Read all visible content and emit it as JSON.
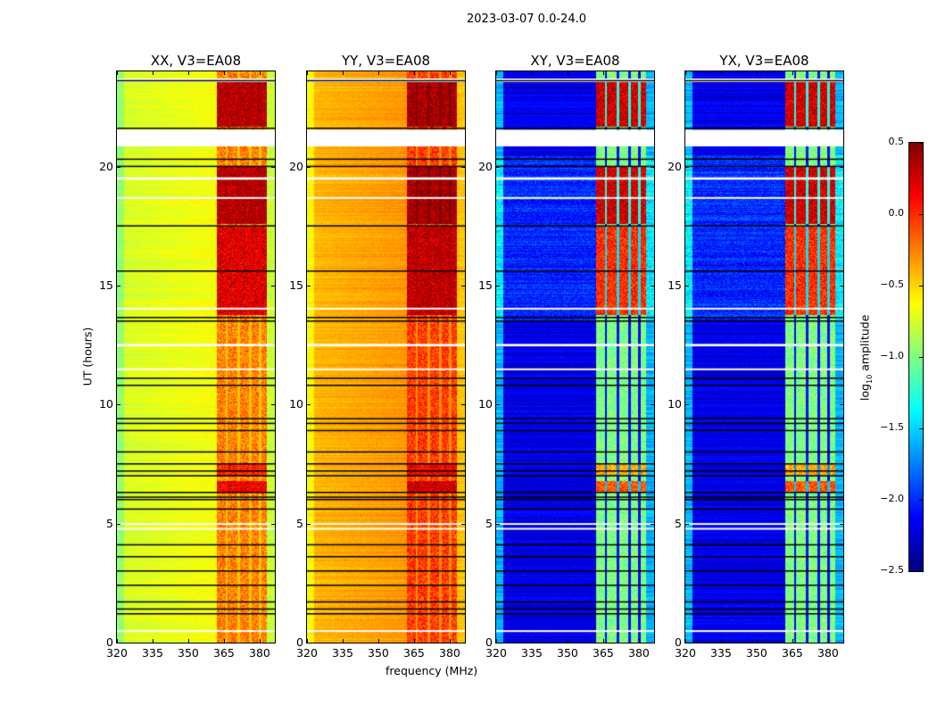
{
  "figure_title": "2023-03-07 0.0-24.0",
  "chart_data": {
    "type": "heatmap",
    "xlabel": "frequency (MHz)",
    "ylabel": "UT (hours)",
    "xlim": [
      320,
      386.4
    ],
    "ylim": [
      0,
      24
    ],
    "xticks": [
      "320",
      "335",
      "350",
      "365",
      "380"
    ],
    "xtick_values": [
      320,
      335,
      350,
      365,
      380
    ],
    "yticks": [
      "0",
      "5",
      "10",
      "15",
      "20"
    ],
    "ytick_values": [
      0,
      5,
      10,
      15,
      20
    ],
    "colorbar": {
      "label_main": "log",
      "label_sub": "10",
      "label_rest": " amplitude",
      "colormap": "jet",
      "range": [
        -2.5,
        0.5
      ],
      "ticks": [
        "0.5",
        "0.0",
        "−0.5",
        "−1.0",
        "−1.5",
        "−2.0",
        "−2.5"
      ],
      "tick_values": [
        0.5,
        0.0,
        -0.5,
        -1.0,
        -1.5,
        -2.0,
        -2.5
      ]
    },
    "rfi_band_mhz": [
      362,
      383
    ],
    "subband_edges_mhz": [
      366,
      371,
      376,
      380
    ],
    "active_hours": [
      [
        13.8,
        17.5,
        0.8
      ],
      [
        17.6,
        20.0,
        1.0
      ],
      [
        21.7,
        23.6,
        1.0
      ],
      [
        6.3,
        6.8,
        0.7
      ],
      [
        7.0,
        7.5,
        0.5
      ]
    ],
    "gap_hours_white": [
      [
        20.85,
        21.55
      ],
      [
        23.55,
        23.7
      ],
      [
        19.45,
        19.55
      ],
      [
        18.65,
        18.72
      ],
      [
        14.0,
        14.07
      ],
      [
        12.45,
        12.55
      ],
      [
        11.45,
        11.52
      ],
      [
        4.95,
        5.02
      ],
      [
        4.75,
        4.82
      ],
      [
        0.45,
        0.52
      ]
    ],
    "flagged_hours_black": [
      23.6,
      21.6,
      20.3,
      20.0,
      17.5,
      15.6,
      13.65,
      13.5,
      11.1,
      10.8,
      9.4,
      9.2,
      8.9,
      8.0,
      7.5,
      7.2,
      7.0,
      6.3,
      6.1,
      6.0,
      5.6,
      4.1,
      3.6,
      3.0,
      2.4,
      1.7,
      1.4,
      1.2
    ],
    "panels": [
      {
        "title": "XX, V3=EA08",
        "base_level": -0.75,
        "band_quiet": -0.25,
        "band_active": 0.35,
        "stripe_level": -0.45
      },
      {
        "title": "YY, V3=EA08",
        "base_level": -0.42,
        "band_quiet": -0.05,
        "band_active": 0.4,
        "stripe_level": -0.3
      },
      {
        "title": "XY, V3=EA08",
        "base_level": -2.2,
        "band_quiet": -1.0,
        "band_active": 0.25,
        "stripe_level": -2.1
      },
      {
        "title": "YX, V3=EA08",
        "base_level": -2.2,
        "band_quiet": -1.0,
        "band_active": 0.25,
        "stripe_level": -2.1
      }
    ]
  }
}
